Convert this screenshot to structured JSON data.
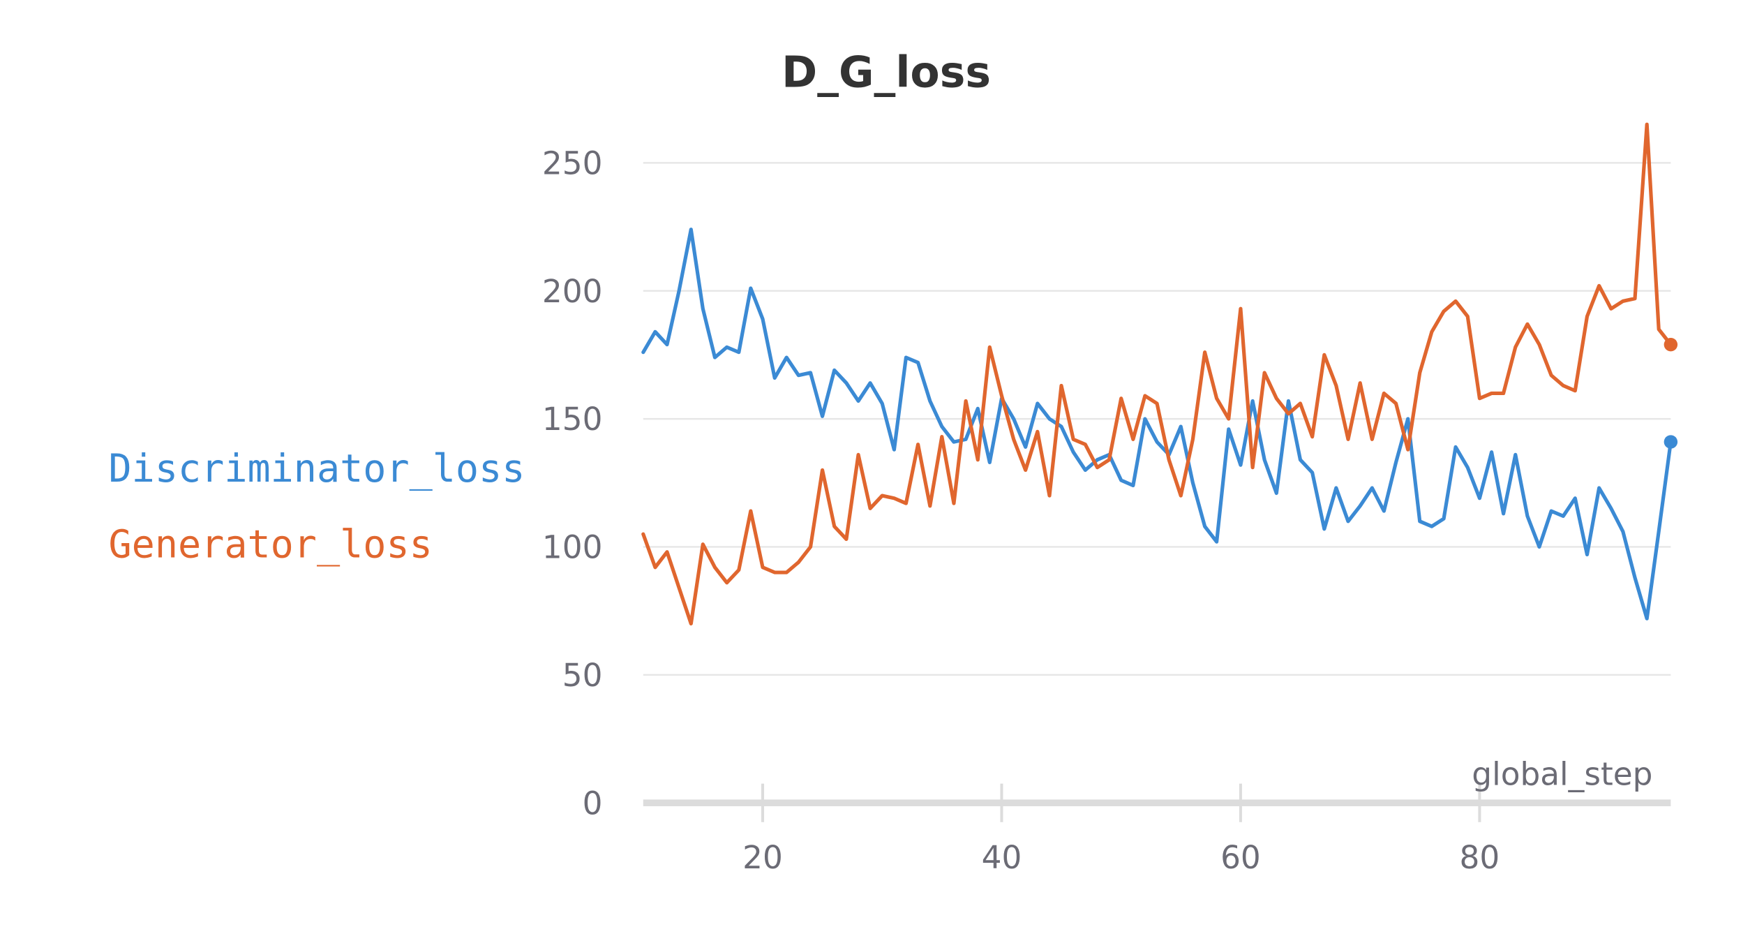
{
  "chart_data": {
    "type": "line",
    "title": "D_G_loss",
    "xlabel": "global_step",
    "ylabel": "",
    "xlim": [
      10,
      96
    ],
    "ylim": [
      0,
      265
    ],
    "x_ticks": [
      20,
      40,
      60,
      80
    ],
    "y_ticks": [
      0,
      50,
      100,
      150,
      200,
      250
    ],
    "grid": "horizontal",
    "legend_position": "left",
    "x": [
      10,
      11,
      12,
      13,
      14,
      15,
      16,
      17,
      18,
      19,
      20,
      21,
      22,
      23,
      24,
      25,
      26,
      27,
      28,
      29,
      30,
      31,
      32,
      33,
      34,
      35,
      36,
      37,
      38,
      39,
      40,
      41,
      42,
      43,
      44,
      45,
      46,
      47,
      48,
      49,
      50,
      51,
      52,
      53,
      54,
      55,
      56,
      57,
      58,
      59,
      60,
      61,
      62,
      63,
      64,
      65,
      66,
      67,
      68,
      69,
      70,
      71,
      72,
      73,
      74,
      75,
      76,
      77,
      78,
      79,
      80,
      81,
      82,
      83,
      84,
      85,
      86,
      87,
      88,
      89,
      90,
      91,
      92,
      93,
      94,
      95,
      96
    ],
    "series": [
      {
        "name": "Discriminator_loss",
        "color": "#3b8ad4",
        "values": [
          176,
          184,
          179,
          200,
          224,
          193,
          174,
          178,
          176,
          201,
          189,
          166,
          174,
          167,
          168,
          151,
          169,
          164,
          157,
          164,
          156,
          138,
          174,
          172,
          157,
          147,
          141,
          142,
          154,
          133,
          158,
          150,
          139,
          156,
          150,
          147,
          137,
          130,
          134,
          136,
          126,
          124,
          150,
          141,
          136,
          147,
          125,
          108,
          102,
          146,
          132,
          157,
          134,
          121,
          157,
          134,
          129,
          107,
          123,
          110,
          116,
          123,
          114,
          133,
          150,
          110,
          108,
          111,
          139,
          131,
          119,
          137,
          113,
          136,
          112,
          100,
          114,
          112,
          119,
          97,
          123,
          115,
          106,
          88,
          72,
          106,
          141
        ]
      },
      {
        "name": "Generator_loss",
        "color": "#e0662e",
        "values": [
          105,
          92,
          98,
          84,
          70,
          101,
          92,
          86,
          91,
          114,
          92,
          90,
          90,
          94,
          100,
          130,
          108,
          103,
          136,
          115,
          120,
          119,
          117,
          140,
          116,
          143,
          117,
          157,
          134,
          178,
          159,
          142,
          130,
          145,
          120,
          163,
          142,
          140,
          131,
          134,
          158,
          142,
          159,
          156,
          134,
          120,
          142,
          176,
          158,
          150,
          193,
          131,
          168,
          158,
          152,
          156,
          143,
          175,
          163,
          142,
          164,
          142,
          160,
          156,
          138,
          168,
          184,
          192,
          196,
          190,
          158,
          160,
          160,
          178,
          187,
          179,
          167,
          163,
          161,
          190,
          202,
          193,
          196,
          197,
          265,
          185,
          179
        ]
      }
    ]
  },
  "colors": {
    "discriminator": "#3b8ad4",
    "generator": "#e0662e",
    "gridline": "#e6e6e6",
    "axis": "#dcdcdc",
    "tick_text": "#6b6b75",
    "title_text": "#333333"
  }
}
